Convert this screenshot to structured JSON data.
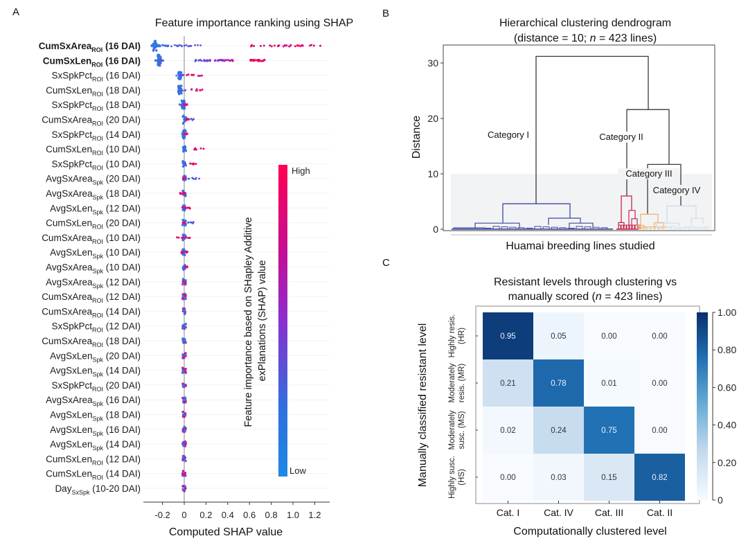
{
  "panels": {
    "A": {
      "letter": "A"
    },
    "B": {
      "letter": "B"
    },
    "C": {
      "letter": "C"
    }
  },
  "chart_data": [
    {
      "type": "scatter",
      "subtype": "shap-beeswarm",
      "title": "Feature importance ranking using SHAP",
      "xlabel": "Computed SHAP value",
      "ylabel": "",
      "xlim": [
        -0.33,
        1.33
      ],
      "xticks": [
        -0.2,
        0,
        0.2,
        0.4,
        0.6,
        0.8,
        1.0,
        1.2
      ],
      "xtick_labels": [
        "-0.2",
        "0",
        "0.2",
        "0.4",
        "0.6",
        "0.8",
        "1.0",
        "1.2"
      ],
      "colorbar": {
        "label": "Feature importance based on SHapley Additive exPlanations (SHAP) value",
        "high_label": "High",
        "low_label": "Low",
        "high_color": "#ff0052",
        "mid_color": "#8a2fd0",
        "low_color": "#1e88e5"
      },
      "features": [
        {
          "base": "CumSxArea",
          "sub": "ROI",
          "dai": "(16 DAI)",
          "bold": true,
          "low_range": [
            -0.28,
            0.2
          ],
          "high_range": [
            0.6,
            1.27
          ],
          "spread": "wide"
        },
        {
          "base": "CumSxLen",
          "sub": "ROI",
          "dai": "(16 DAI)",
          "bold": true,
          "low_range": [
            -0.25,
            -0.2
          ],
          "mid_range": [
            0.1,
            0.46
          ],
          "high_range": [
            0.6,
            0.74
          ],
          "spread": "wide"
        },
        {
          "base": "SxSpkPct",
          "sub": "ROI",
          "dai": "(16 DAI)",
          "bold": false,
          "low_range": [
            -0.08,
            0.0
          ],
          "high_range": [
            0.02,
            0.17
          ]
        },
        {
          "base": "CumSxLen",
          "sub": "ROI",
          "dai": "(18 DAI)",
          "bold": false,
          "low_range": [
            -0.06,
            0.02
          ],
          "high_range": [
            0.06,
            0.17
          ]
        },
        {
          "base": "SxSpkPct",
          "sub": "ROI",
          "dai": "(18 DAI)",
          "bold": false,
          "low_range": [
            -0.05,
            0.0
          ],
          "high_range": [
            0.0,
            0.03
          ]
        },
        {
          "base": "CumSxArea",
          "sub": "ROI",
          "dai": "(20 DAI)",
          "bold": false,
          "low_range": [
            -0.01,
            0.1
          ],
          "high_range": [
            0.0,
            0.04
          ]
        },
        {
          "base": "SxSpkPct",
          "sub": "ROI",
          "dai": "(14 DAI)",
          "bold": false,
          "low_range": [
            -0.02,
            0.01
          ],
          "high_range": [
            0.0,
            0.03
          ]
        },
        {
          "base": "CumSxLen",
          "sub": "ROI",
          "dai": "(10 DAI)",
          "bold": false,
          "low_range": [
            -0.01,
            0.01
          ],
          "high_range": [
            0.04,
            0.18
          ]
        },
        {
          "base": "SxSpkPct",
          "sub": "ROI",
          "dai": "(10 DAI)",
          "bold": false,
          "low_range": [
            -0.01,
            0.01
          ],
          "high_range": [
            0.04,
            0.17
          ]
        },
        {
          "base": "AvgSxArea",
          "sub": "Spk",
          "dai": "(20 DAI)",
          "bold": false,
          "low_range": [
            0.02,
            0.16
          ],
          "high_range": [
            -0.01,
            0.01
          ]
        },
        {
          "base": "AvgSxArea",
          "sub": "Spk",
          "dai": "(18 DAI)",
          "bold": false,
          "low_range": [
            -0.01,
            0.01
          ],
          "high_range": [
            -0.04,
            0.02
          ]
        },
        {
          "base": "AvgSxLen",
          "sub": "Spk",
          "dai": "(12 DAI)",
          "bold": false,
          "low_range": [
            -0.01,
            0.01
          ],
          "high_range": [
            -0.04,
            0.06
          ]
        },
        {
          "base": "CumSxLen",
          "sub": "ROI",
          "dai": "(20 DAI)",
          "bold": false,
          "low_range": [
            0.03,
            0.09
          ],
          "high_range": [
            -0.01,
            0.01
          ]
        },
        {
          "base": "CumSxArea",
          "sub": "ROI",
          "dai": "(10 DAI)",
          "bold": false,
          "low_range": [
            -0.01,
            0.01
          ],
          "high_range": [
            -0.07,
            0.08
          ]
        },
        {
          "base": "AvgSxLen",
          "sub": "Spk",
          "dai": "(10 DAI)",
          "bold": false,
          "low_range": [
            -0.01,
            0.01
          ],
          "high_range": [
            -0.03,
            0.03
          ]
        },
        {
          "base": "AvgSxArea",
          "sub": "Spk",
          "dai": "(10 DAI)",
          "bold": false,
          "low_range": [
            -0.01,
            0.01
          ],
          "high_range": [
            0.0,
            0.03
          ]
        },
        {
          "base": "AvgSxArea",
          "sub": "Spk",
          "dai": "(12 DAI)",
          "bold": false
        },
        {
          "base": "CumSxArea",
          "sub": "ROI",
          "dai": "(12 DAI)",
          "bold": false
        },
        {
          "base": "CumSxArea",
          "sub": "ROI",
          "dai": "(14 DAI)",
          "bold": false
        },
        {
          "base": "SxSpkPct",
          "sub": "ROI",
          "dai": "(12 DAI)",
          "bold": false
        },
        {
          "base": "CumSxArea",
          "sub": "ROI",
          "dai": "(18 DAI)",
          "bold": false
        },
        {
          "base": "AvgSxLen",
          "sub": "Spk",
          "dai": "(20 DAI)",
          "bold": false
        },
        {
          "base": "AvgSxLen",
          "sub": "Spk",
          "dai": "(14 DAI)",
          "bold": false
        },
        {
          "base": "SxSpkPct",
          "sub": "ROI",
          "dai": "(20 DAI)",
          "bold": false
        },
        {
          "base": "AvgSxArea",
          "sub": "Spk",
          "dai": "(16 DAI)",
          "bold": false
        },
        {
          "base": "AvgSxLen",
          "sub": "Spk",
          "dai": "(18 DAI)",
          "bold": false
        },
        {
          "base": "AvgSxLen",
          "sub": "Spk",
          "dai": "(16 DAI)",
          "bold": false
        },
        {
          "base": "AvgSxLen",
          "sub": "Spk",
          "dai": "(14 DAI)",
          "bold": false
        },
        {
          "base": "CumSxLen",
          "sub": "ROI",
          "dai": "(12 DAI)",
          "bold": false
        },
        {
          "base": "CumSxLen",
          "sub": "ROI",
          "dai": "(14 DAI)",
          "bold": false
        },
        {
          "base": "Day",
          "sub": "SxSpk",
          "dai": "(10-20 DAI)",
          "bold": false
        }
      ]
    },
    {
      "type": "dendrogram",
      "title_line1": "Hierarchical clustering dendrogram",
      "title_line2_pre": "(distance = 10; ",
      "title_line2_n": "n",
      "title_line2_post": " = 423 lines)",
      "xlabel": "Huamai breeding lines studied",
      "ylabel": "Distance",
      "ylim": [
        0,
        33
      ],
      "yticks": [
        0,
        10,
        20,
        30
      ],
      "threshold": 10,
      "categories": [
        {
          "name": "Category I",
          "color": "#3b4a9a",
          "merge_height": 4.6
        },
        {
          "name": "Category II",
          "color": "#c8234a",
          "merge_height": 6.0
        },
        {
          "name": "Category III",
          "color": "#f0b060",
          "merge_height": 2.7
        },
        {
          "name": "Category IV",
          "color": "#c9dcea",
          "merge_height": 4.2
        }
      ],
      "links": [
        {
          "left": "Category I",
          "right": "II+III+IV",
          "height": 31.2
        },
        {
          "left": "Category II",
          "right": "III+IV",
          "height": 21.6
        },
        {
          "left": "Category III",
          "right": "Category IV",
          "height": 11.7
        }
      ]
    },
    {
      "type": "heatmap",
      "title_line1": "Resistant levels through clustering vs",
      "title_line2_pre": "manually scored (",
      "title_line2_n": "n",
      "title_line2_post": " = 423 lines)",
      "xlabel": "Computationally clustered level",
      "ylabel": "Manually classified resistant level",
      "x_categories": [
        "Cat. I",
        "Cat. IV",
        "Cat. III",
        "Cat. II"
      ],
      "y_categories": [
        [
          "Highly resis.",
          "(HR)"
        ],
        [
          "Moderately",
          "resis. (MR)"
        ],
        [
          "Moderately",
          "susc. (MS)"
        ],
        [
          "Highly susc.",
          "(HS)"
        ]
      ],
      "values": [
        [
          0.95,
          0.05,
          0.0,
          0.0
        ],
        [
          0.21,
          0.78,
          0.01,
          0.0
        ],
        [
          0.02,
          0.24,
          0.75,
          0.0
        ],
        [
          0.0,
          0.03,
          0.15,
          0.82
        ]
      ],
      "value_labels": [
        [
          "0.95",
          "0.05",
          "0.00",
          "0.00"
        ],
        [
          "0.21",
          "0.78",
          "0.01",
          "0.00"
        ],
        [
          "0.02",
          "0.24",
          "0.75",
          "0.00"
        ],
        [
          "0.00",
          "0.03",
          "0.15",
          "0.82"
        ]
      ],
      "colorbar": {
        "ticks": [
          0,
          0.2,
          0.4,
          0.6,
          0.8,
          1.0
        ],
        "tick_labels": [
          "0",
          "0.20",
          "0.40",
          "0.60",
          "0.80",
          "1.00"
        ],
        "range": [
          0,
          1
        ],
        "colormap": "Blues"
      }
    }
  ]
}
